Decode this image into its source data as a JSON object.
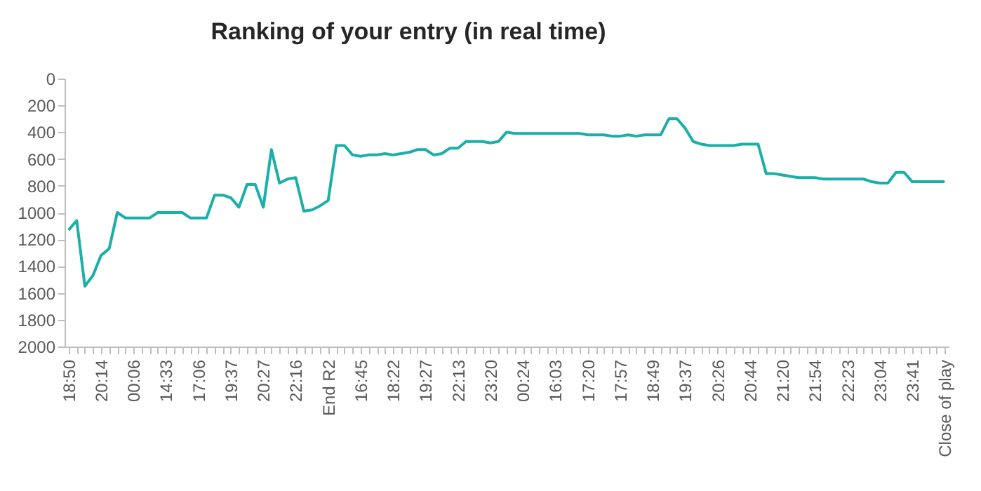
{
  "chart_data": {
    "type": "line",
    "title": "Ranking of your entry (in real time)",
    "categories": [
      "18:50",
      null,
      null,
      null,
      "20:14",
      null,
      null,
      null,
      "00:06",
      null,
      null,
      null,
      "14:33",
      null,
      null,
      null,
      "17:06",
      null,
      null,
      null,
      "19:37",
      null,
      null,
      null,
      "20:27",
      null,
      null,
      null,
      "22:16",
      null,
      null,
      null,
      "End R2",
      null,
      null,
      null,
      "16:45",
      null,
      null,
      null,
      "18:22",
      null,
      null,
      null,
      "19:27",
      null,
      null,
      null,
      "22:13",
      null,
      null,
      null,
      "23:20",
      null,
      null,
      null,
      "00:24",
      null,
      null,
      null,
      "16:03",
      null,
      null,
      null,
      "17:20",
      null,
      null,
      null,
      "17:57",
      null,
      null,
      null,
      "18:49",
      null,
      null,
      null,
      "19:37",
      null,
      null,
      null,
      "20:26",
      null,
      null,
      null,
      "20:44",
      null,
      null,
      null,
      "21:20",
      null,
      null,
      null,
      "21:54",
      null,
      null,
      null,
      "22:23",
      null,
      null,
      null,
      "23:04",
      null,
      null,
      null,
      "23:41",
      null,
      null,
      null,
      "Close of play"
    ],
    "series": [
      {
        "color": "#1aafa8",
        "values": [
          1130,
          1060,
          1550,
          1470,
          1320,
          1270,
          1000,
          1040,
          1040,
          1040,
          1040,
          1000,
          1000,
          1000,
          1000,
          1040,
          1040,
          1040,
          870,
          870,
          890,
          960,
          790,
          790,
          960,
          530,
          780,
          750,
          740,
          990,
          980,
          950,
          910,
          500,
          500,
          570,
          580,
          570,
          570,
          560,
          570,
          560,
          550,
          530,
          530,
          570,
          560,
          520,
          520,
          470,
          470,
          470,
          480,
          470,
          400,
          410,
          410,
          410,
          410,
          410,
          410,
          410,
          410,
          410,
          420,
          420,
          420,
          430,
          430,
          420,
          430,
          420,
          420,
          420,
          300,
          300,
          370,
          470,
          490,
          500,
          500,
          500,
          500,
          490,
          490,
          490,
          710,
          710,
          720,
          730,
          740,
          740,
          740,
          750,
          750,
          750,
          750,
          750,
          750,
          770,
          780,
          780,
          700,
          700,
          770,
          770,
          770,
          770,
          770
        ]
      }
    ],
    "ylim": [
      2000,
      0
    ],
    "yticks": [
      0,
      200,
      400,
      600,
      800,
      1000,
      1200,
      1400,
      1600,
      1800,
      2000
    ],
    "grid": false
  }
}
